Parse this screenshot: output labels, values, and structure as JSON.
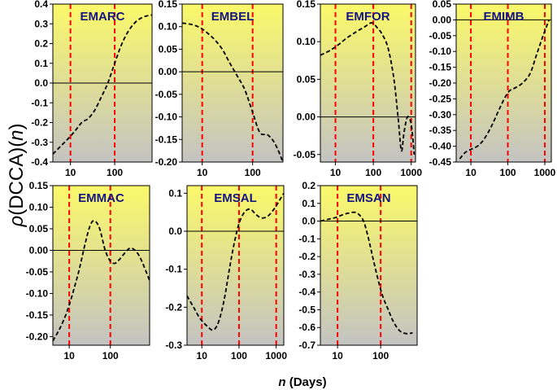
{
  "figure": {
    "ylabel_rho": "ρ",
    "ylabel_main": "(DCCA)(",
    "ylabel_n": "n",
    "ylabel_close": ")",
    "xlabel_n": "n",
    "xlabel_rest": " (Days)"
  },
  "colors": {
    "title": "#141482",
    "grad_top": "#fbf969",
    "grad_bottom": "#c3c3c3",
    "vline": "#ff0000",
    "curve": "#000000",
    "zero": "#000000"
  },
  "chart_data": [
    {
      "type": "line",
      "title": "EMARC",
      "xscale": "log",
      "xlim": [
        4,
        700
      ],
      "ylim": [
        -0.4,
        0.4
      ],
      "yticks": [
        -0.4,
        -0.3,
        -0.2,
        -0.1,
        0.0,
        0.1,
        0.2,
        0.3,
        0.4
      ],
      "ytick_labels": [
        "-0.4",
        "-0.3",
        "-0.2",
        "-0.1",
        "0.0",
        "0.1",
        "0.2",
        "0.3",
        "0.4"
      ],
      "xticks": [
        10,
        100
      ],
      "xtick_labels": [
        "10",
        "100"
      ],
      "vlines": [
        10,
        100
      ],
      "zero_line": 0,
      "x": [
        4,
        6,
        9,
        13,
        18,
        25,
        35,
        50,
        70,
        100,
        140,
        200,
        300,
        450,
        700
      ],
      "y": [
        -0.36,
        -0.32,
        -0.28,
        -0.24,
        -0.2,
        -0.18,
        -0.14,
        -0.07,
        0.0,
        0.1,
        0.19,
        0.26,
        0.31,
        0.335,
        0.345
      ]
    },
    {
      "type": "line",
      "title": "EMBEL",
      "xscale": "log",
      "xlim": [
        4,
        400
      ],
      "ylim": [
        -0.2,
        0.15
      ],
      "yticks": [
        -0.2,
        -0.15,
        -0.1,
        -0.05,
        0.0,
        0.05,
        0.1,
        0.15
      ],
      "ytick_labels": [
        "-0.20",
        "-0.15",
        "-0.10",
        "-0.05",
        "0.00",
        "0.05",
        "0.10",
        "0.15"
      ],
      "xticks": [
        10,
        100
      ],
      "xtick_labels": [
        "10",
        "100"
      ],
      "vlines": [
        10,
        100
      ],
      "zero_line": 0,
      "x": [
        4,
        6,
        9,
        13,
        18,
        25,
        35,
        50,
        70,
        100,
        140,
        200,
        280,
        400
      ],
      "y": [
        0.108,
        0.105,
        0.098,
        0.085,
        0.07,
        0.05,
        0.02,
        -0.01,
        -0.04,
        -0.09,
        -0.135,
        -0.14,
        -0.16,
        -0.2
      ]
    },
    {
      "type": "line",
      "title": "EMFOR",
      "xscale": "log",
      "xlim": [
        4,
        1300
      ],
      "ylim": [
        -0.06,
        0.15
      ],
      "yticks": [
        -0.05,
        0.0,
        0.05,
        0.1,
        0.15
      ],
      "ytick_labels": [
        "-0.05",
        "0.00",
        "0.05",
        "0.10",
        "0.15"
      ],
      "xticks": [
        10,
        100,
        1000
      ],
      "xtick_labels": [
        "10",
        "100",
        "1000"
      ],
      "vlines": [
        10,
        100,
        1000
      ],
      "zero_line": 0,
      "x": [
        4,
        7,
        12,
        20,
        35,
        60,
        90,
        130,
        180,
        250,
        350,
        450,
        550,
        650,
        800,
        1000,
        1200
      ],
      "y": [
        0.082,
        0.088,
        0.096,
        0.105,
        0.113,
        0.12,
        0.125,
        0.118,
        0.108,
        0.09,
        0.05,
        0.0,
        -0.045,
        -0.02,
        0.0,
        -0.01,
        -0.05
      ]
    },
    {
      "type": "line",
      "title": "EMIMB",
      "xscale": "log",
      "xlim": [
        4,
        1500
      ],
      "ylim": [
        -0.45,
        0.05
      ],
      "yticks": [
        -0.45,
        -0.4,
        -0.35,
        -0.3,
        -0.25,
        -0.2,
        -0.15,
        -0.1,
        -0.05,
        0.0,
        0.05
      ],
      "ytick_labels": [
        "-0.45",
        "-0.40",
        "-0.35",
        "-0.30",
        "-0.25",
        "-0.20",
        "-0.15",
        "-0.10",
        "-0.05",
        "0.00",
        "0.05"
      ],
      "xticks": [
        10,
        100,
        1000
      ],
      "xtick_labels": [
        "10",
        "100",
        "1000"
      ],
      "vlines": [
        10,
        100,
        1000
      ],
      "zero_line": 0,
      "x": [
        5,
        7,
        10,
        15,
        22,
        35,
        55,
        80,
        110,
        160,
        250,
        400,
        600,
        900,
        1300
      ],
      "y": [
        -0.44,
        -0.42,
        -0.41,
        -0.4,
        -0.38,
        -0.34,
        -0.29,
        -0.25,
        -0.225,
        -0.215,
        -0.2,
        -0.17,
        -0.11,
        -0.05,
        0.0
      ]
    },
    {
      "type": "line",
      "title": "EMMAC",
      "xscale": "log",
      "xlim": [
        4,
        900
      ],
      "ylim": [
        -0.22,
        0.15
      ],
      "yticks": [
        -0.2,
        -0.15,
        -0.1,
        -0.05,
        0.0,
        0.05,
        0.1,
        0.15
      ],
      "ytick_labels": [
        "-0.20",
        "-0.15",
        "-0.10",
        "-0.05",
        "0.00",
        "0.05",
        "0.10",
        "0.15"
      ],
      "xticks": [
        10,
        100
      ],
      "xtick_labels": [
        "10",
        "100"
      ],
      "vlines": [
        10,
        100
      ],
      "zero_line": 0,
      "x": [
        4,
        6,
        9,
        13,
        18,
        25,
        33,
        42,
        55,
        75,
        100,
        130,
        170,
        230,
        300,
        400,
        550,
        900
      ],
      "y": [
        -0.21,
        -0.18,
        -0.14,
        -0.09,
        -0.04,
        0.02,
        0.06,
        0.068,
        0.05,
        0.0,
        -0.025,
        -0.03,
        -0.02,
        -0.005,
        0.005,
        0.0,
        -0.02,
        -0.07
      ]
    },
    {
      "type": "line",
      "title": "EMSAL",
      "xscale": "log",
      "xlim": [
        4,
        1600
      ],
      "ylim": [
        -0.3,
        0.12
      ],
      "yticks": [
        -0.3,
        -0.2,
        -0.1,
        0.0,
        0.1
      ],
      "ytick_labels": [
        "-0.3",
        "-0.2",
        "-0.1",
        "0.0",
        "0.1"
      ],
      "xticks": [
        10,
        100,
        1000
      ],
      "xtick_labels": [
        "10",
        "100",
        "1000"
      ],
      "vlines": [
        10,
        100,
        1000
      ],
      "zero_line": 0,
      "x": [
        4,
        6,
        9,
        14,
        20,
        28,
        40,
        55,
        75,
        100,
        140,
        200,
        280,
        400,
        600,
        900,
        1200,
        1600
      ],
      "y": [
        -0.17,
        -0.2,
        -0.23,
        -0.25,
        -0.26,
        -0.24,
        -0.18,
        -0.1,
        -0.03,
        0.02,
        0.05,
        0.058,
        0.045,
        0.035,
        0.04,
        0.06,
        0.08,
        0.1
      ]
    },
    {
      "type": "line",
      "title": "EMSAN",
      "xscale": "log",
      "xlim": [
        4,
        700
      ],
      "ylim": [
        -0.7,
        0.2
      ],
      "yticks": [
        -0.7,
        -0.6,
        -0.5,
        -0.4,
        -0.3,
        -0.2,
        -0.1,
        0.0,
        0.1,
        0.2
      ],
      "ytick_labels": [
        "-0.7",
        "-0.6",
        "-0.5",
        "-0.4",
        "-0.3",
        "-0.2",
        "-0.1",
        "0.0",
        "0.1",
        "0.2"
      ],
      "xticks": [
        10,
        100
      ],
      "xtick_labels": [
        "10",
        "100"
      ],
      "vlines": [
        10,
        100
      ],
      "zero_line": 0,
      "x": [
        4,
        6,
        9,
        13,
        18,
        25,
        32,
        40,
        50,
        65,
        85,
        110,
        150,
        200,
        280,
        400,
        550
      ],
      "y": [
        0.0,
        0.01,
        0.02,
        0.035,
        0.045,
        0.05,
        0.035,
        0.0,
        -0.08,
        -0.2,
        -0.32,
        -0.42,
        -0.5,
        -0.57,
        -0.62,
        -0.635,
        -0.63
      ]
    }
  ]
}
